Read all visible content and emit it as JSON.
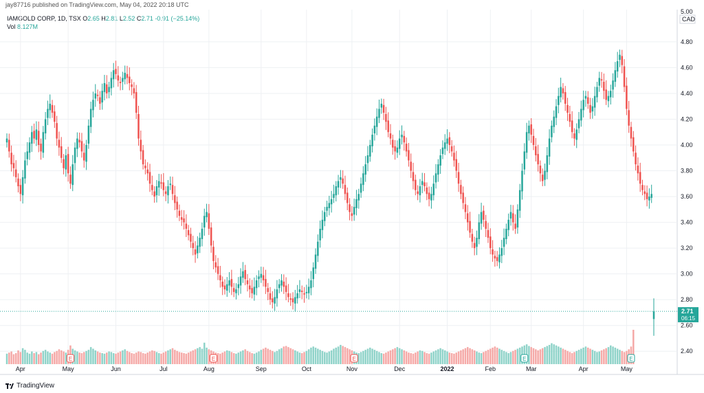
{
  "header": {
    "published": "jay87716 published on TradingView.com, May 04, 2022 20:18 UTC"
  },
  "legend": {
    "symbol": "IAMGOLD CORP, 1D, TSX",
    "open_label": "O",
    "open": "2.65",
    "high_label": "H",
    "high": "2.81",
    "low_label": "L",
    "low": "2.52",
    "close_label": "C",
    "close": "2.71",
    "change": "-0.91 (−25.14%)",
    "vol_label": "Vol",
    "vol": "8.127M"
  },
  "price_axis": {
    "currency": "CAD",
    "top_clip": "5.00"
  },
  "last_price": {
    "price": "2.71",
    "countdown": "06:15"
  },
  "footer": {
    "brand": "TradingView"
  },
  "colors": {
    "up": "#26a69a",
    "down": "#ef5350",
    "vol_up": "#8fd3c9",
    "vol_down": "#f5a9a7"
  },
  "chart_data": {
    "type": "candlestick",
    "title": "IAMGOLD CORP, 1D, TSX",
    "ylabel": "CAD",
    "ylim": [
      2.3,
      5.05
    ],
    "yticks": [
      2.4,
      2.6,
      2.8,
      3.0,
      3.2,
      3.4,
      3.6,
      3.8,
      4.0,
      4.2,
      4.4,
      4.6,
      4.8
    ],
    "x_months": [
      {
        "label": "Apr",
        "index": 6
      },
      {
        "label": "May",
        "index": 27
      },
      {
        "label": "Jun",
        "index": 48
      },
      {
        "label": "Jul",
        "index": 69
      },
      {
        "label": "Aug",
        "index": 89
      },
      {
        "label": "Sep",
        "index": 112
      },
      {
        "label": "Oct",
        "index": 132
      },
      {
        "label": "Nov",
        "index": 152
      },
      {
        "label": "Dec",
        "index": 173
      },
      {
        "label": "2022",
        "index": 194
      },
      {
        "label": "Feb",
        "index": 213
      },
      {
        "label": "Mar",
        "index": 231
      },
      {
        "label": "Apr",
        "index": 254
      },
      {
        "label": "May",
        "index": 273
      }
    ],
    "earnings_markers": [
      {
        "index": 28,
        "type": "down"
      },
      {
        "index": 91,
        "type": "down"
      },
      {
        "index": 153,
        "type": "down"
      },
      {
        "index": 228,
        "type": "up"
      },
      {
        "index": 275,
        "type": "up"
      }
    ],
    "closes": [
      4.05,
      3.95,
      3.85,
      3.82,
      3.75,
      3.68,
      3.62,
      3.75,
      3.88,
      3.95,
      4.02,
      4.1,
      4.05,
      4.12,
      4.0,
      3.95,
      4.1,
      4.2,
      4.28,
      4.32,
      4.25,
      4.18,
      4.05,
      3.98,
      3.9,
      3.82,
      3.92,
      3.78,
      3.7,
      3.85,
      3.98,
      4.05,
      4.02,
      3.95,
      3.88,
      4.0,
      4.15,
      4.28,
      4.35,
      4.4,
      4.38,
      4.32,
      4.42,
      4.48,
      4.4,
      4.45,
      4.52,
      4.58,
      4.55,
      4.5,
      4.48,
      4.52,
      4.56,
      4.52,
      4.48,
      4.45,
      4.4,
      4.25,
      4.05,
      3.95,
      3.85,
      3.82,
      3.78,
      3.7,
      3.65,
      3.6,
      3.68,
      3.72,
      3.7,
      3.65,
      3.62,
      3.68,
      3.7,
      3.62,
      3.55,
      3.5,
      3.45,
      3.42,
      3.4,
      3.35,
      3.3,
      3.25,
      3.2,
      3.15,
      3.22,
      3.28,
      3.35,
      3.45,
      3.48,
      3.35,
      3.22,
      3.1,
      3.05,
      3.0,
      2.95,
      2.9,
      2.88,
      2.92,
      2.95,
      2.9,
      2.86,
      2.88,
      2.92,
      2.98,
      3.02,
      2.96,
      2.92,
      2.88,
      2.85,
      2.9,
      2.95,
      2.98,
      3.0,
      2.95,
      2.9,
      2.86,
      2.8,
      2.78,
      2.82,
      2.88,
      2.92,
      2.95,
      2.9,
      2.86,
      2.82,
      2.8,
      2.78,
      2.82,
      2.85,
      2.88,
      2.86,
      2.84,
      2.86,
      2.9,
      2.95,
      3.05,
      3.15,
      3.25,
      3.35,
      3.42,
      3.48,
      3.52,
      3.55,
      3.58,
      3.62,
      3.68,
      3.72,
      3.75,
      3.7,
      3.62,
      3.55,
      3.48,
      3.45,
      3.52,
      3.58,
      3.62,
      3.7,
      3.78,
      3.85,
      3.92,
      4.0,
      4.08,
      4.15,
      4.22,
      4.28,
      4.32,
      4.25,
      4.18,
      4.1,
      4.05,
      3.98,
      3.95,
      3.98,
      4.05,
      4.08,
      4.02,
      3.95,
      3.88,
      3.8,
      3.72,
      3.65,
      3.62,
      3.68,
      3.72,
      3.68,
      3.62,
      3.58,
      3.62,
      3.7,
      3.78,
      3.85,
      3.92,
      3.98,
      4.02,
      4.05,
      4.0,
      3.95,
      3.88,
      3.8,
      3.7,
      3.62,
      3.55,
      3.48,
      3.4,
      3.32,
      3.25,
      3.2,
      3.28,
      3.4,
      3.48,
      3.42,
      3.35,
      3.28,
      3.2,
      3.15,
      3.12,
      3.1,
      3.15,
      3.2,
      3.28,
      3.35,
      3.42,
      3.48,
      3.4,
      3.35,
      3.5,
      3.65,
      3.8,
      3.95,
      4.1,
      4.15,
      4.08,
      4.0,
      3.92,
      3.85,
      3.78,
      3.72,
      3.8,
      3.92,
      4.05,
      4.15,
      4.22,
      4.3,
      4.38,
      4.45,
      4.4,
      4.32,
      4.25,
      4.18,
      4.1,
      4.05,
      4.12,
      4.2,
      4.28,
      4.35,
      4.38,
      4.32,
      4.25,
      4.3,
      4.38,
      4.45,
      4.52,
      4.5,
      4.42,
      4.35,
      4.38,
      4.42,
      4.5,
      4.58,
      4.65,
      4.7,
      4.62,
      4.45,
      4.28,
      4.15,
      4.05,
      3.95,
      3.85,
      3.78,
      3.7,
      3.65,
      3.62,
      3.58,
      3.6,
      3.62,
      2.71
    ],
    "volumes_k": [
      1900,
      2100,
      2300,
      1800,
      2000,
      2500,
      2200,
      2900,
      2600,
      2100,
      1900,
      2300,
      2000,
      2200,
      1800,
      2100,
      2400,
      2600,
      2300,
      2100,
      1900,
      2200,
      2400,
      2700,
      2500,
      2300,
      2100,
      2600,
      3400,
      2800,
      2500,
      2300,
      2100,
      2000,
      2200,
      2400,
      2600,
      3100,
      2800,
      2500,
      2300,
      2100,
      2000,
      1900,
      2100,
      2300,
      2200,
      2000,
      1900,
      2100,
      2300,
      2500,
      2700,
      2400,
      2200,
      2000,
      1900,
      2100,
      2300,
      2200,
      2000,
      1900,
      2100,
      2300,
      2500,
      2400,
      2200,
      2000,
      1900,
      2100,
      2300,
      2500,
      2700,
      2900,
      2600,
      2400,
      2200,
      2100,
      2000,
      1900,
      2100,
      2300,
      2500,
      2700,
      2900,
      3100,
      2800,
      3900,
      3000,
      2700,
      2500,
      2300,
      2100,
      2000,
      1900,
      2100,
      2300,
      2500,
      2400,
      2200,
      2000,
      1900,
      2100,
      2300,
      2500,
      2700,
      2400,
      2200,
      2000,
      1900,
      2100,
      2300,
      2600,
      2800,
      3000,
      2800,
      2600,
      2400,
      2200,
      2400,
      2700,
      2900,
      3200,
      3300,
      3100,
      2900,
      2700,
      2500,
      2300,
      2100,
      2000,
      2200,
      2400,
      2700,
      3000,
      3200,
      3000,
      2800,
      2600,
      2400,
      2200,
      2100,
      2300,
      2500,
      2800,
      3000,
      3200,
      3500,
      3300,
      3100,
      2900,
      2700,
      2500,
      2300,
      2100,
      2000,
      2200,
      2400,
      2600,
      2800,
      3000,
      2800,
      2600,
      2400,
      2200,
      2000,
      1900,
      2100,
      2300,
      2500,
      2700,
      2900,
      3100,
      2900,
      2700,
      2500,
      2300,
      2100,
      2000,
      1900,
      2100,
      2300,
      2500,
      2400,
      2200,
      2000,
      1900,
      2100,
      2300,
      2500,
      2700,
      2900,
      2700,
      2500,
      2300,
      2100,
      2000,
      1900,
      2100,
      2300,
      2500,
      2700,
      2900,
      3100,
      2900,
      2700,
      2500,
      2300,
      2100,
      2000,
      2200,
      2400,
      2600,
      2800,
      3000,
      3200,
      3000,
      2800,
      2600,
      2400,
      2200,
      2000,
      2200,
      2400,
      2600,
      2800,
      3000,
      3200,
      3400,
      3600,
      3300,
      3100,
      2900,
      2700,
      2500,
      2700,
      2900,
      3100,
      3300,
      3500,
      3800,
      3600,
      3400,
      3200,
      3000,
      2800,
      2600,
      2400,
      2200,
      2000,
      2200,
      2400,
      2600,
      2800,
      3000,
      3200,
      3000,
      2800,
      2600,
      2400,
      2200,
      2300,
      2500,
      2700,
      2900,
      3100,
      3400,
      3200,
      3000,
      2800,
      2600,
      2400,
      2200,
      2400,
      2700,
      3200,
      8127
    ]
  }
}
